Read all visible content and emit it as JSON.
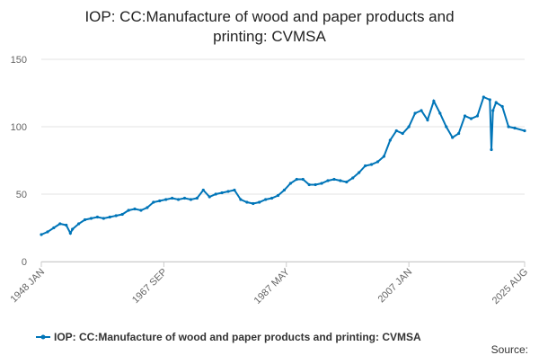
{
  "chart_data": {
    "type": "line",
    "title": "IOP: CC:Manufacture of wood and paper products and printing: CVMSA",
    "source": "Source:",
    "x": [
      "1948 JAN",
      "1949 JAN",
      "1950 JAN",
      "1951 JAN",
      "1952 JAN",
      "1952 SEP",
      "1953 JAN",
      "1954 JAN",
      "1955 JAN",
      "1956 JAN",
      "1957 JAN",
      "1958 JAN",
      "1959 JAN",
      "1960 JAN",
      "1961 JAN",
      "1962 JAN",
      "1963 JAN",
      "1964 JAN",
      "1965 JAN",
      "1966 JAN",
      "1967 JAN",
      "1968 JAN",
      "1969 JAN",
      "1970 JAN",
      "1971 JAN",
      "1972 JAN",
      "1973 JAN",
      "1974 JAN",
      "1975 JAN",
      "1976 JAN",
      "1977 JAN",
      "1978 JAN",
      "1979 JAN",
      "1980 JAN",
      "1981 JAN",
      "1982 JAN",
      "1983 JAN",
      "1984 JAN",
      "1985 JAN",
      "1986 JAN",
      "1987 JAN",
      "1988 JAN",
      "1989 JAN",
      "1990 JAN",
      "1991 JAN",
      "1992 JAN",
      "1993 JAN",
      "1994 JAN",
      "1995 JAN",
      "1996 JAN",
      "1997 JAN",
      "1998 JAN",
      "1999 JAN",
      "2000 JAN",
      "2001 JAN",
      "2002 JAN",
      "2003 JAN",
      "2004 JAN",
      "2005 JAN",
      "2006 JAN",
      "2007 JAN",
      "2008 JAN",
      "2009 JAN",
      "2010 JAN",
      "2011 JAN",
      "2012 JAN",
      "2013 JAN",
      "2014 JAN",
      "2015 JAN",
      "2016 JAN",
      "2017 JAN",
      "2018 JAN",
      "2019 JAN",
      "2020 JAN",
      "2020 APR",
      "2020 JUL",
      "2021 JAN",
      "2022 JAN",
      "2023 JAN",
      "2024 JAN",
      "2025 AUG"
    ],
    "series": [
      {
        "name": "IOP: CC:Manufacture of wood and paper products and printing: CVMSA",
        "color": "#0075b8",
        "values": [
          20,
          22,
          25,
          28,
          27,
          21,
          24,
          28,
          31,
          32,
          33,
          32,
          33,
          34,
          35,
          38,
          39,
          38,
          40,
          44,
          45,
          46,
          47,
          46,
          47,
          46,
          47,
          53,
          48,
          50,
          51,
          52,
          53,
          46,
          44,
          43,
          44,
          46,
          47,
          49,
          53,
          58,
          61,
          61,
          57,
          57,
          58,
          60,
          61,
          60,
          59,
          62,
          66,
          71,
          72,
          74,
          78,
          90,
          97,
          95,
          100,
          110,
          112,
          105,
          119,
          110,
          100,
          92,
          95,
          108,
          106,
          108,
          122,
          120,
          83,
          112,
          118,
          115,
          100,
          99,
          97
        ]
      }
    ],
    "xlim": [
      "1948 JAN",
      "2025 AUG"
    ],
    "xticks": [
      "1948 JAN",
      "1967 SEP",
      "1987 MAY",
      "2007 JAN",
      "2025 AUG"
    ],
    "ylim": [
      0,
      150
    ],
    "yticks": [
      0,
      50,
      100,
      150
    ],
    "grid": true,
    "legend": "bottom"
  }
}
